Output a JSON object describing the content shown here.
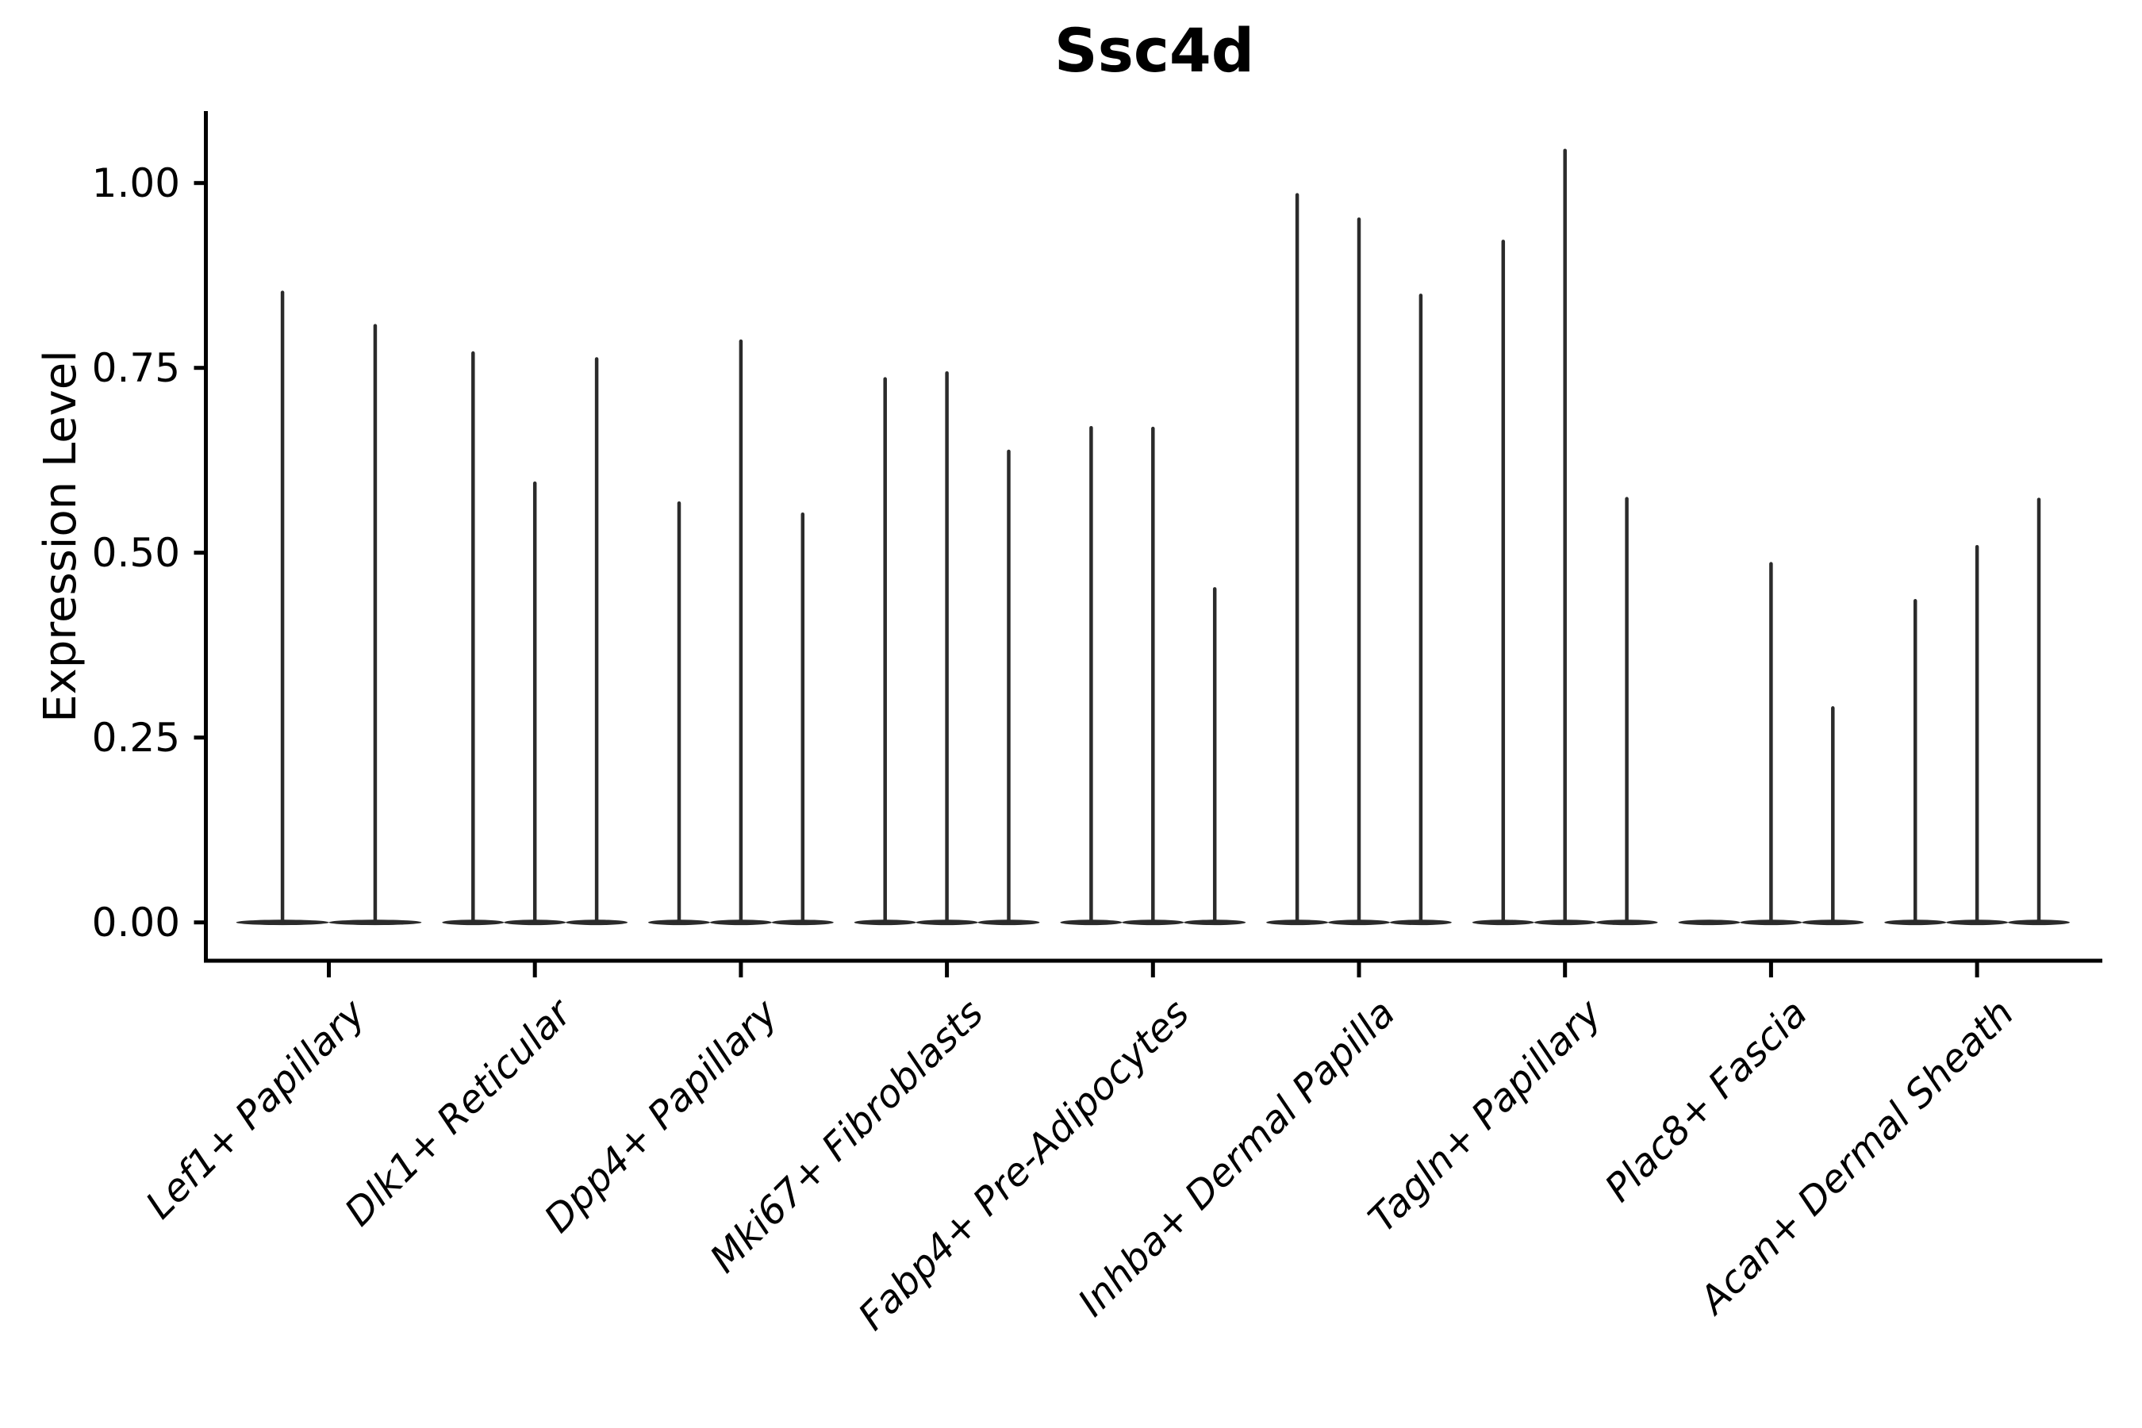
{
  "title": "Ssc4d",
  "ylabel": "Expression Level",
  "chart_data": {
    "type": "violin",
    "title": "Ssc4d",
    "ylabel": "Expression Level",
    "xlabel": "",
    "ylim": [
      -0.053,
      1.095
    ],
    "grid": false,
    "legend": "none",
    "yticks": [
      {
        "label": "1.00",
        "value": 1.0
      },
      {
        "label": "0.75",
        "value": 0.75
      },
      {
        "label": "0.50",
        "value": 0.5
      },
      {
        "label": "0.25",
        "value": 0.25
      },
      {
        "label": "0.00",
        "value": 0.0
      }
    ],
    "description": "Violin plot of expression level per cluster; each cluster shows 2-3 very thin spike-shaped violins rising from a flat base at 0. Values below are the top (max) of each spike in expression-level units; 0 means a flat violin with no spike.",
    "categories": [
      {
        "label": "Lef1+ Papillary",
        "violin_tops": [
          0.852,
          0.807
        ]
      },
      {
        "label": "Dlk1+ Reticular",
        "violin_tops": [
          0.77,
          0.594,
          0.762
        ]
      },
      {
        "label": "Dpp4+ Papillary",
        "violin_tops": [
          0.567,
          0.786,
          0.552
        ]
      },
      {
        "label": "Mki67+ Fibroblasts",
        "violin_tops": [
          0.735,
          0.743,
          0.637
        ]
      },
      {
        "label": "Fabp4+ Pre-Adipocytes",
        "violin_tops": [
          0.669,
          0.668,
          0.451
        ]
      },
      {
        "label": "Inhba+ Dermal Papilla",
        "violin_tops": [
          0.984,
          0.951,
          0.848
        ]
      },
      {
        "label": "Tagln+ Papillary",
        "violin_tops": [
          0.921,
          1.044,
          0.573
        ]
      },
      {
        "label": "Plac8+ Fascia",
        "violin_tops": [
          0.0,
          0.485,
          0.29
        ]
      },
      {
        "label": "Acan+ Dermal Sheath",
        "violin_tops": [
          0.435,
          0.508,
          0.572
        ]
      }
    ],
    "colors": {
      "violin": "#2b2b2b",
      "axis": "#000000",
      "text": "#000000",
      "background": "#ffffff"
    }
  }
}
